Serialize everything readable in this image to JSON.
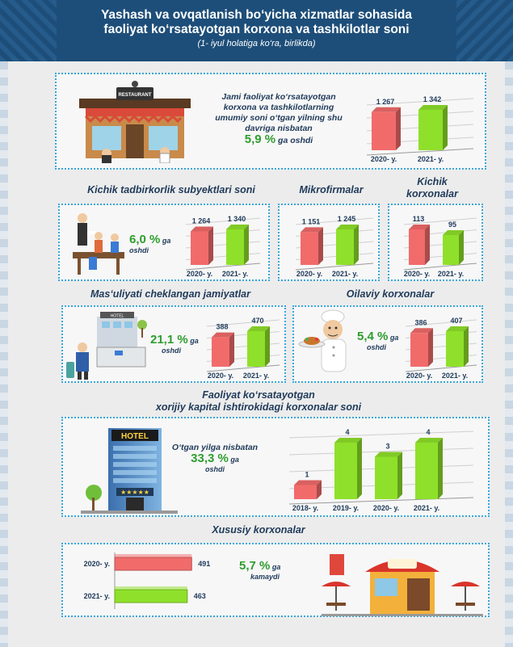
{
  "header": {
    "title_line1": "Yashash va ovqatlanish bo‘yicha xizmatlar sohasida",
    "title_line2": "faoliyat ko‘rsatayotgan korxona va tashkilotlar soni",
    "subtitle": "(1- iyul holatiga ko‘ra, birlikda)"
  },
  "colors": {
    "red": "#f26b6b",
    "green": "#8fe02a",
    "header": "#1d4e79",
    "border": "#3aa6d8",
    "text": "#1f3a5a",
    "pct": "#2e9d2e"
  },
  "icons": [
    "restaurant-illustration",
    "cafe-table-illustration",
    "hotel-lobby-illustration",
    "chef-illustration",
    "hotel-building-illustration",
    "cafe-storefront-illustration"
  ],
  "total": {
    "note_line1": "Jami faoliyat ko‘rsatayotgan",
    "note_line2": "korxona va tashkilotlarning",
    "note_line3": "umumiy soni o‘tgan yilning shu",
    "note_line4": "davriga nisbatan",
    "pct": "5,9 %",
    "note_after": " ga oshdi"
  },
  "small_business": {
    "title": "Kichik tadbirkorlik subyektlari soni",
    "pct": "6,0 %",
    "suffix1": " ga",
    "suffix2": "oshdi"
  },
  "micro": {
    "title": "Mikrofirmalar"
  },
  "small_enterprises": {
    "title_line1": "Kichik",
    "title_line2": "korxonalar"
  },
  "llc": {
    "title": "Mas‘uliyati cheklangan jamiyatlar",
    "pct": "21,1 %",
    "suffix1": " ga",
    "suffix2": "oshdi"
  },
  "family": {
    "title": "Oilaviy korxonalar",
    "pct": "5,4 %",
    "suffix1": " ga",
    "suffix2": "oshdi"
  },
  "foreign": {
    "title_line1": "Faoliyat ko‘rsatayotgan",
    "title_line2": "xorijiy kapital ishtirokidagi korxonalar soni",
    "note_line1": "O‘tgan yilga nisbatan",
    "pct": "33,3 %",
    "suffix1": " ga",
    "suffix2": "oshdi"
  },
  "private": {
    "title": "Xususiy korxonalar",
    "pct": "5,7 %",
    "suffix1": " ga",
    "suffix2": "kamaydi"
  },
  "chart_data": [
    {
      "id": "total",
      "type": "bar",
      "categories": [
        "2020- y.",
        "2021- y."
      ],
      "values": [
        1267,
        1342
      ],
      "labels": [
        "1 267",
        "1 342"
      ]
    },
    {
      "id": "small_business",
      "type": "bar",
      "categories": [
        "2020- y.",
        "2021- y."
      ],
      "values": [
        1264,
        1340
      ],
      "labels": [
        "1 264",
        "1 340"
      ]
    },
    {
      "id": "micro",
      "type": "bar",
      "categories": [
        "2020- y.",
        "2021- y."
      ],
      "values": [
        1151,
        1245
      ],
      "labels": [
        "1 151",
        "1 245"
      ]
    },
    {
      "id": "small_enterprises",
      "type": "bar",
      "categories": [
        "2020- y.",
        "2021- y."
      ],
      "values": [
        113,
        95
      ],
      "labels": [
        "113",
        "95"
      ]
    },
    {
      "id": "llc",
      "type": "bar",
      "categories": [
        "2020- y.",
        "2021- y."
      ],
      "values": [
        388,
        470
      ],
      "labels": [
        "388",
        "470"
      ]
    },
    {
      "id": "family",
      "type": "bar",
      "categories": [
        "2020- y.",
        "2021- y."
      ],
      "values": [
        386,
        407
      ],
      "labels": [
        "386",
        "407"
      ]
    },
    {
      "id": "foreign",
      "type": "bar",
      "categories": [
        "2018- y.",
        "2019- y.",
        "2020- y.",
        "2021- y."
      ],
      "values": [
        1,
        4,
        3,
        4
      ],
      "labels": [
        "1",
        "4",
        "3",
        "4"
      ]
    },
    {
      "id": "private",
      "type": "bar",
      "orientation": "horizontal",
      "categories": [
        "2020- y.",
        "2021- y."
      ],
      "values": [
        491,
        463
      ],
      "labels": [
        "491",
        "463"
      ]
    }
  ]
}
